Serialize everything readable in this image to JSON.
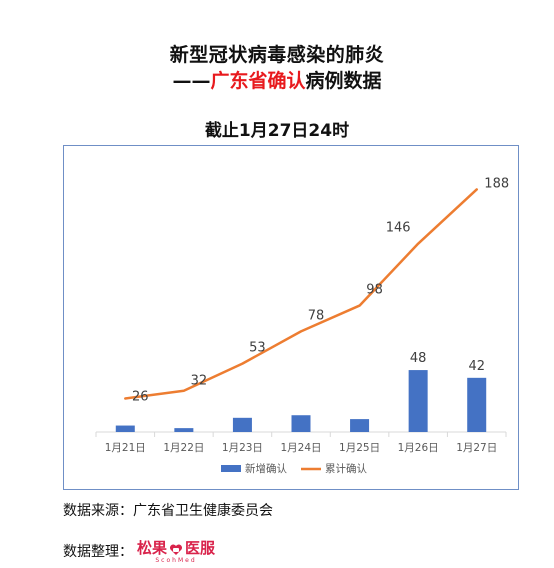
{
  "title": {
    "line1": "新型冠状病毒感染的肺炎",
    "line2_dash": "——",
    "line2_highlight": "广东省确认",
    "line2_rest": "病例数据"
  },
  "subtitle": "截止1月27日24时",
  "chart_data": {
    "type": "bar",
    "categories": [
      "1月21日",
      "1月22日",
      "1月23日",
      "1月24日",
      "1月25日",
      "1月26日",
      "1月27日"
    ],
    "series": [
      {
        "name": "新增确认",
        "type": "bar",
        "color": "#4472c4",
        "values": [
          5,
          3,
          11,
          13,
          10,
          48,
          42
        ],
        "data_labels": [
          null,
          null,
          null,
          null,
          null,
          "48",
          "42"
        ]
      },
      {
        "name": "累计确认",
        "type": "line",
        "color": "#ed7d31",
        "values": [
          26,
          32,
          53,
          78,
          98,
          146,
          188
        ],
        "data_labels": [
          "26",
          "32",
          "53",
          "78",
          "98",
          "146",
          "188"
        ]
      }
    ],
    "ylim": [
      0,
      200
    ],
    "grid": false,
    "legend": "bottom",
    "xlabel": "",
    "ylabel": ""
  },
  "footer": {
    "source": "数据来源：广东省卫生健康委员会",
    "compiler_label": "数据整理：",
    "logo_left": "松果",
    "logo_right": "医服",
    "logo_sub": "ScohMed"
  },
  "colors": {
    "accent_red": "#e8191d",
    "frame": "#6f8fc6",
    "logo": "#d9234b"
  }
}
